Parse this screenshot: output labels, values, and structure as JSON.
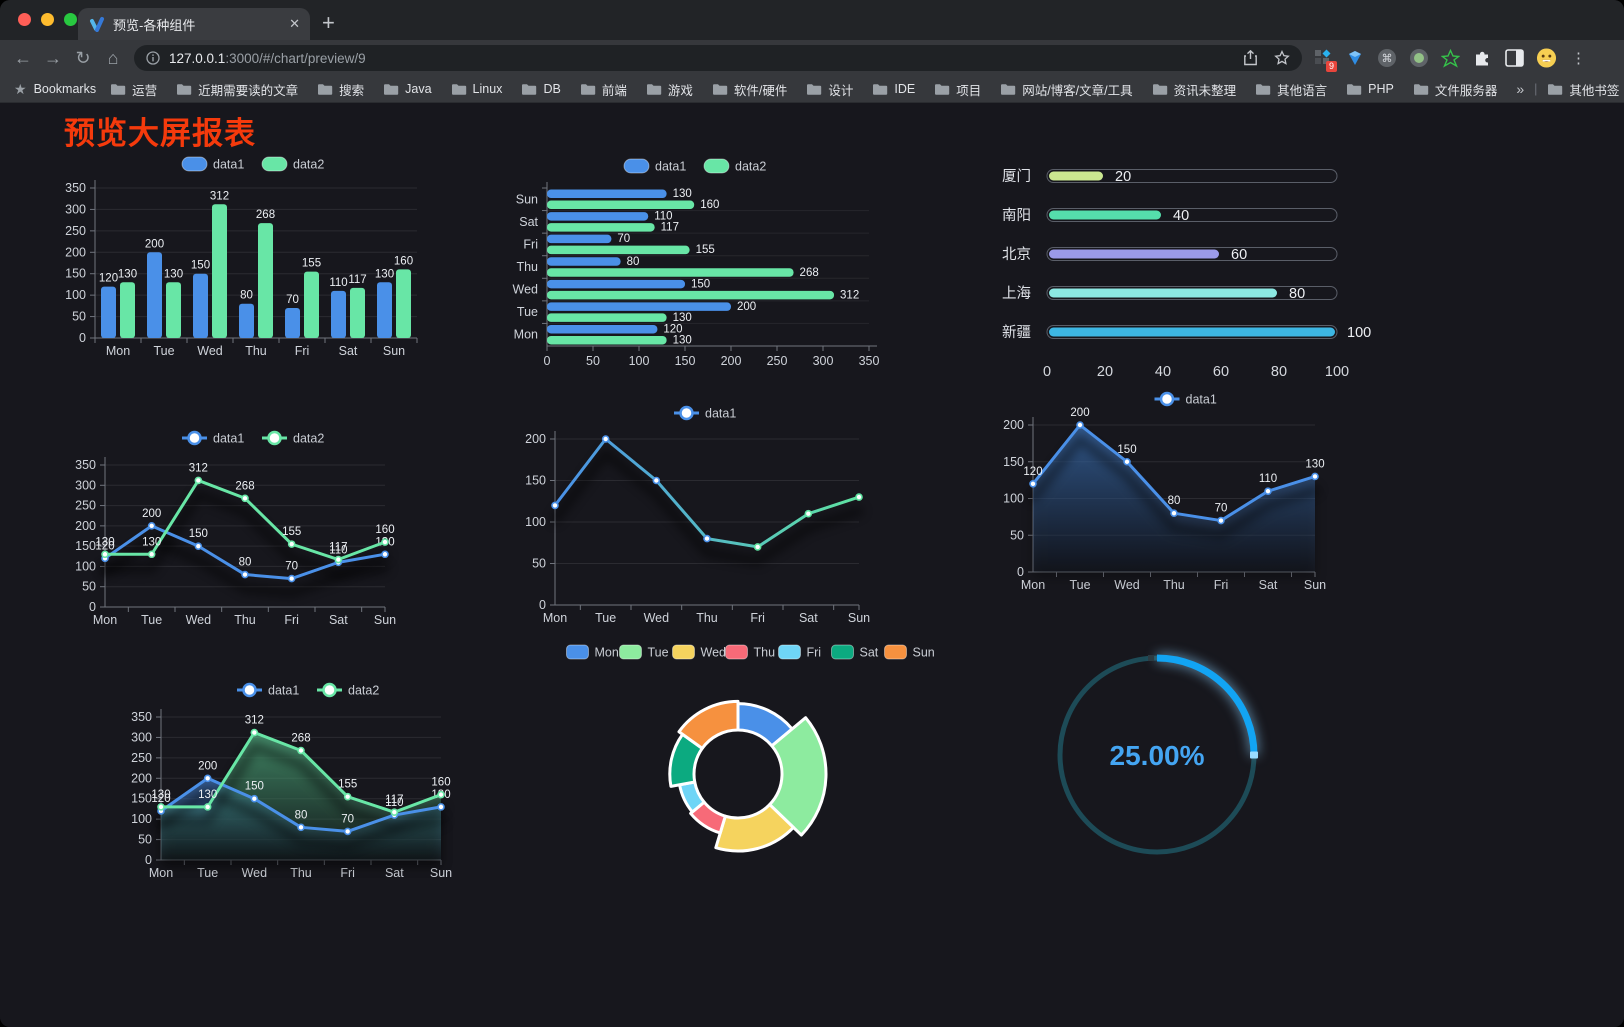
{
  "browser": {
    "tab_title": "预览-各种组件",
    "close_glyph": "✕",
    "new_tab_glyph": "+",
    "back_glyph": "←",
    "forward_glyph": "→",
    "reload_glyph": "↻",
    "home_glyph": "⌂",
    "url_host": "127.0.0.1",
    "url_rest": ":3000/#/chart/preview/9",
    "bookmarks_label": "Bookmarks",
    "bookmarks": [
      "运营",
      "近期需要读的文章",
      "搜索",
      "Java",
      "Linux",
      "DB",
      "前端",
      "游戏",
      "软件/硬件",
      "设计",
      "IDE",
      "项目",
      "网站/博客/文章/工具",
      "资讯未整理",
      "其他语言",
      "PHP",
      "文件服务器"
    ],
    "bookmarks_overflow": "»",
    "other_bookmarks": "其他书签",
    "extension_badge": "9",
    "menu_glyph": "⋮"
  },
  "page": {
    "title": "预览大屏报表",
    "title_color": "#f53a0c",
    "background": "#17171d"
  },
  "chart_data": [
    {
      "renderer": "groupedBar",
      "type": "bar",
      "legend_position": "top",
      "categories": [
        "Mon",
        "Tue",
        "Wed",
        "Thu",
        "Fri",
        "Sat",
        "Sun"
      ],
      "series": [
        {
          "name": "data1",
          "color": "#4a90e8",
          "values": [
            120,
            200,
            150,
            80,
            70,
            110,
            130
          ]
        },
        {
          "name": "data2",
          "color": "#68e6a6",
          "values": [
            130,
            130,
            312,
            268,
            155,
            117,
            160
          ]
        }
      ],
      "ylim": [
        0,
        350
      ],
      "ytick_step": 50,
      "grid": true,
      "value_labels": true
    },
    {
      "renderer": "hBar",
      "type": "bar",
      "orientation": "horizontal",
      "legend_position": "top",
      "categories": [
        "Mon",
        "Tue",
        "Wed",
        "Thu",
        "Fri",
        "Sat",
        "Sun"
      ],
      "categories_top_to_bottom": [
        "Sun",
        "Sat",
        "Fri",
        "Thu",
        "Wed",
        "Tue",
        "Mon"
      ],
      "series": [
        {
          "name": "data1",
          "color": "#4a90e8",
          "values": [
            120,
            200,
            150,
            80,
            70,
            110,
            130
          ]
        },
        {
          "name": "data2",
          "color": "#68e6a6",
          "values": [
            130,
            130,
            312,
            268,
            155,
            117,
            160
          ]
        }
      ],
      "xlim": [
        0,
        350
      ],
      "xtick_step": 50,
      "value_labels": true
    },
    {
      "renderer": "capsule",
      "type": "bar",
      "subtype": "capsule-progress",
      "rows": [
        {
          "label": "厦门",
          "value": 20,
          "color": "#cbe790"
        },
        {
          "label": "南阳",
          "value": 40,
          "color": "#55deac"
        },
        {
          "label": "北京",
          "value": 60,
          "color": "#9b9ae9"
        },
        {
          "label": "上海",
          "value": 80,
          "color": "#8ce8e2"
        },
        {
          "label": "新疆",
          "value": 100,
          "color": "#3db7e4"
        }
      ],
      "xlim": [
        0,
        100
      ],
      "xticks": [
        0,
        20,
        40,
        60,
        80,
        100
      ]
    },
    {
      "renderer": "lineChart",
      "type": "line",
      "legend_position": "top",
      "categories": [
        "Mon",
        "Tue",
        "Wed",
        "Thu",
        "Fri",
        "Sat",
        "Sun"
      ],
      "series": [
        {
          "name": "data1",
          "color": "#4a90e8",
          "values": [
            120,
            200,
            150,
            80,
            70,
            110,
            130
          ]
        },
        {
          "name": "data2",
          "color": "#68e6a6",
          "values": [
            130,
            130,
            312,
            268,
            155,
            117,
            160
          ]
        }
      ],
      "ylim": [
        0,
        350
      ],
      "ytick_step": 50,
      "value_labels": true,
      "shadow": true
    },
    {
      "renderer": "lineChart",
      "type": "line",
      "legend_position": "top",
      "categories": [
        "Mon",
        "Tue",
        "Wed",
        "Thu",
        "Fri",
        "Sat",
        "Sun"
      ],
      "series": [
        {
          "name": "data1",
          "gradient": [
            "#4a90e8",
            "#5fe3a1"
          ],
          "values": [
            120,
            200,
            150,
            80,
            70,
            110,
            130
          ]
        }
      ],
      "ylim": [
        0,
        200
      ],
      "ytick_step": 50,
      "value_labels": false,
      "shadow": true
    },
    {
      "renderer": "lineChart",
      "type": "area",
      "legend_position": "top",
      "categories": [
        "Mon",
        "Tue",
        "Wed",
        "Thu",
        "Fri",
        "Sat",
        "Sun"
      ],
      "series": [
        {
          "name": "data1",
          "color": "#4a90e8",
          "area": true,
          "values": [
            120,
            200,
            150,
            80,
            70,
            110,
            130
          ]
        }
      ],
      "ylim": [
        0,
        200
      ],
      "ytick_step": 50,
      "value_labels": true,
      "shadow": true
    },
    {
      "renderer": "lineChart",
      "type": "area",
      "legend_position": "top",
      "categories": [
        "Mon",
        "Tue",
        "Wed",
        "Thu",
        "Fri",
        "Sat",
        "Sun"
      ],
      "series": [
        {
          "name": "data1",
          "color": "#4a90e8",
          "area": true,
          "values": [
            120,
            200,
            150,
            80,
            70,
            110,
            130
          ]
        },
        {
          "name": "data2",
          "color": "#68e6a6",
          "area": true,
          "values": [
            130,
            130,
            312,
            268,
            155,
            117,
            160
          ]
        }
      ],
      "ylim": [
        0,
        350
      ],
      "ytick_step": 50,
      "value_labels": true,
      "shadow": true
    },
    {
      "renderer": "rose",
      "type": "pie",
      "subtype": "nightingale-rose",
      "legend_position": "top",
      "categories": [
        "Mon",
        "Tue",
        "Wed",
        "Thu",
        "Fri",
        "Sat",
        "Sun"
      ],
      "values": [
        120,
        200,
        150,
        80,
        70,
        110,
        130
      ],
      "colors": [
        "#4a90e8",
        "#8deb9f",
        "#f5d35e",
        "#f76a78",
        "#6fd5f6",
        "#0caa80",
        "#f6913f"
      ]
    },
    {
      "renderer": "gauge",
      "type": "pie",
      "subtype": "ring-progress",
      "value_percent": 25,
      "label": "25.00%",
      "arc_color": "#12a4f3",
      "track_color": "#1d4b57",
      "text_color": "#44a5f2"
    }
  ]
}
